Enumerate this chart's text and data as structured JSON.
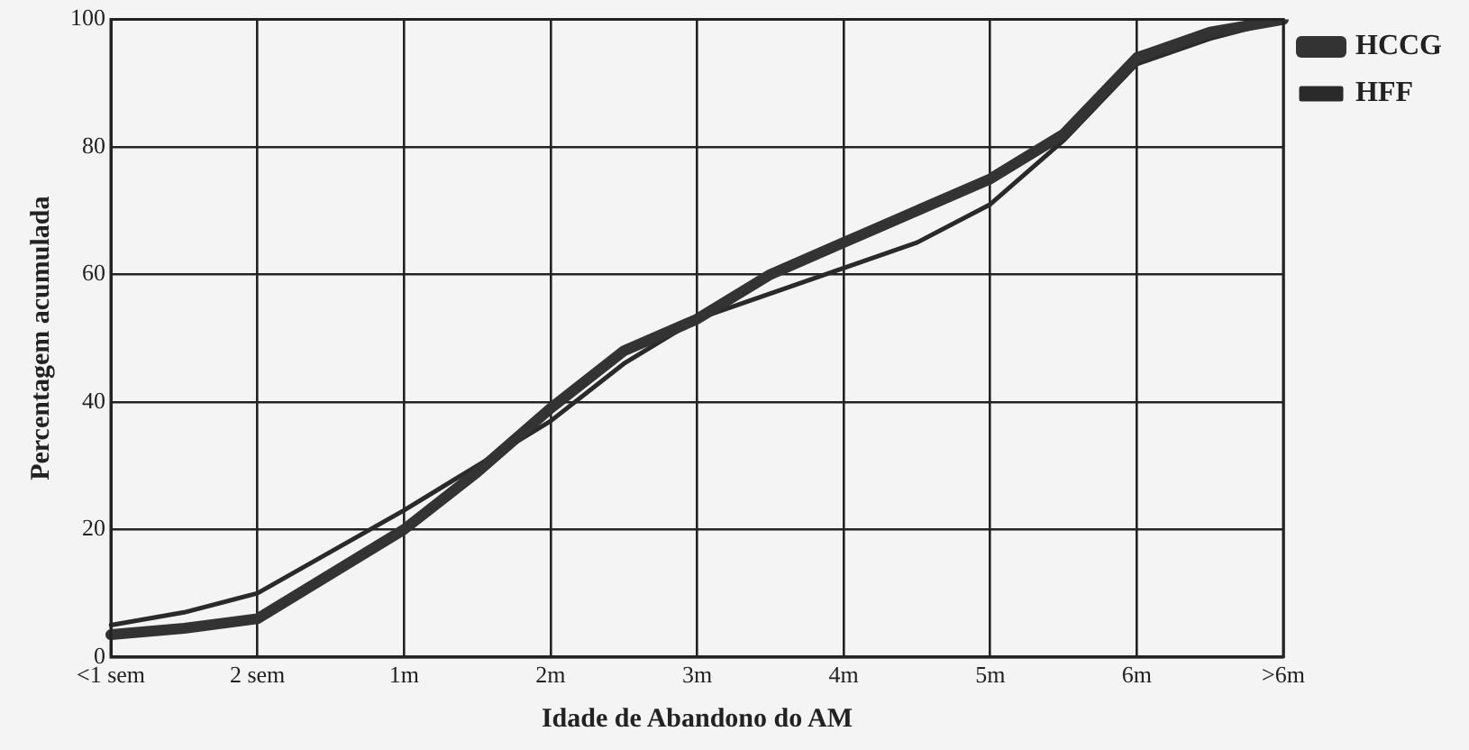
{
  "chart_data": {
    "type": "line",
    "xlabel": "Idade de Abandono do AM",
    "ylabel": "Percentagem acumulada",
    "categories": [
      "<1 sem",
      null,
      "2 sem",
      null,
      "1m",
      null,
      "2m",
      null,
      "3m",
      null,
      "4m",
      null,
      "5m",
      null,
      "6m",
      null,
      ">6m"
    ],
    "ylim": [
      0,
      100
    ],
    "yticks": [
      0,
      20,
      40,
      60,
      80,
      100
    ],
    "grid": true,
    "legend": "right",
    "marker": "none",
    "line_style": "solid",
    "series": [
      {
        "name": "HCCG",
        "color": "#333333",
        "values": [
          3.5,
          4.5,
          6,
          13,
          20,
          29,
          39,
          48,
          53,
          60,
          65,
          70,
          75,
          82,
          94,
          98,
          100
        ]
      },
      {
        "name": "HFF",
        "color": "#2a2a2a",
        "values": [
          5,
          7,
          10,
          16.5,
          23,
          30,
          37,
          46,
          53,
          57,
          61,
          65,
          71,
          81,
          93,
          97,
          100
        ]
      }
    ]
  }
}
